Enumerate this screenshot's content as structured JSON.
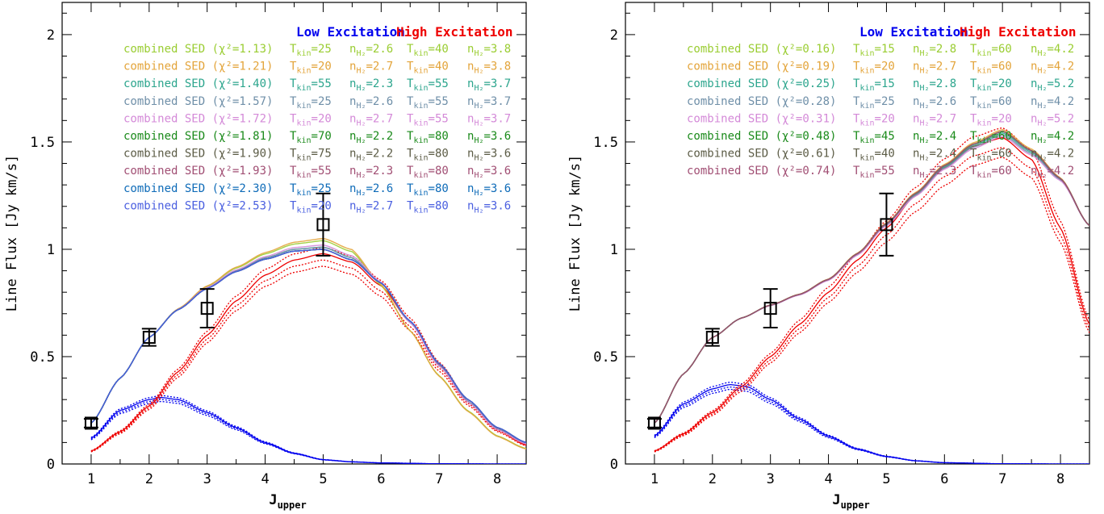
{
  "chart_data": [
    {
      "type": "line",
      "xlabel": "J",
      "xlabel_sub": "upper",
      "ylabel": "Line Flux [Jy km/s]",
      "xlim": [
        0.5,
        8.5
      ],
      "ylim": [
        0,
        2.15
      ],
      "xticks": [
        1,
        2,
        3,
        4,
        5,
        6,
        7,
        8
      ],
      "xtick_labels": [
        "1",
        "2",
        "3",
        "4",
        "5",
        "6",
        "7",
        "8"
      ],
      "yticks": [
        0,
        0.5,
        1,
        1.5,
        2
      ],
      "ytick_labels": [
        "0",
        "0.5",
        "1",
        "1.5",
        "2"
      ],
      "header": {
        "low": "Low Excitation",
        "high": "High Excitation",
        "low_color": "#0000ee",
        "high_color": "#ee0000"
      },
      "observed": {
        "x": [
          1,
          2,
          3,
          5
        ],
        "y": [
          0.19,
          0.59,
          0.725,
          1.115
        ],
        "err": [
          0.02,
          0.04,
          0.09,
          0.145
        ]
      },
      "low_curve": {
        "color": "#0000ee",
        "x": [
          1,
          1.5,
          2,
          2.2,
          2.5,
          3,
          3.5,
          4,
          4.5,
          5,
          5.5,
          6,
          7,
          8,
          8.5
        ],
        "y": [
          0.12,
          0.25,
          0.3,
          0.31,
          0.3,
          0.24,
          0.17,
          0.1,
          0.05,
          0.02,
          0.01,
          0.005,
          0.001,
          0,
          0
        ]
      },
      "high_curve": {
        "color": "#ee0000",
        "x": [
          1,
          1.5,
          2,
          2.5,
          3,
          3.5,
          4,
          4.5,
          5,
          5.5,
          6,
          6.5,
          7,
          7.5,
          8,
          8.5
        ],
        "y": [
          0.06,
          0.15,
          0.27,
          0.43,
          0.6,
          0.76,
          0.88,
          0.95,
          0.98,
          0.94,
          0.83,
          0.66,
          0.46,
          0.29,
          0.16,
          0.09
        ]
      },
      "combined_shape": {
        "x": [
          1,
          1.5,
          2,
          2.5,
          3,
          3.5,
          4,
          4.5,
          5,
          5.5,
          6,
          6.5,
          7,
          7.5,
          8,
          8.5
        ],
        "y": [
          0.19,
          0.4,
          0.59,
          0.72,
          0.82,
          0.9,
          0.96,
          1.0,
          1.01,
          0.96,
          0.85,
          0.67,
          0.47,
          0.3,
          0.17,
          0.1
        ]
      },
      "series": [
        {
          "name": "combined SED",
          "chi2": "1.13",
          "color": "#9acd32",
          "t_low": "25",
          "n_low": "2.6",
          "t_high": "40",
          "n_high": "3.8",
          "peak_scale": 1.03,
          "tail_scale": 0.72
        },
        {
          "name": "combined SED",
          "chi2": "1.21",
          "color": "#e3a43a",
          "t_low": "20",
          "n_low": "2.7",
          "t_high": "40",
          "n_high": "3.8",
          "peak_scale": 1.04,
          "tail_scale": 0.7
        },
        {
          "name": "combined SED",
          "chi2": "1.40",
          "color": "#2ca58d",
          "t_low": "55",
          "n_low": "2.3",
          "t_high": "55",
          "n_high": "3.7",
          "peak_scale": 1.0,
          "tail_scale": 0.95
        },
        {
          "name": "combined SED",
          "chi2": "1.57",
          "color": "#6f8fa8",
          "t_low": "25",
          "n_low": "2.6",
          "t_high": "55",
          "n_high": "3.7",
          "peak_scale": 1.0,
          "tail_scale": 0.95
        },
        {
          "name": "combined SED",
          "chi2": "1.72",
          "color": "#d48ad8",
          "t_low": "20",
          "n_low": "2.7",
          "t_high": "55",
          "n_high": "3.7",
          "peak_scale": 1.01,
          "tail_scale": 0.93
        },
        {
          "name": "combined SED",
          "chi2": "1.81",
          "color": "#1a8a1a",
          "t_low": "70",
          "n_low": "2.2",
          "t_high": "80",
          "n_high": "3.6",
          "peak_scale": 0.99,
          "tail_scale": 1.0
        },
        {
          "name": "combined SED",
          "chi2": "1.90",
          "color": "#5c5c46",
          "t_low": "75",
          "n_low": "2.2",
          "t_high": "80",
          "n_high": "3.6",
          "peak_scale": 0.99,
          "tail_scale": 1.0
        },
        {
          "name": "combined SED",
          "chi2": "1.93",
          "color": "#a14f74",
          "t_low": "55",
          "n_low": "2.3",
          "t_high": "80",
          "n_high": "3.6",
          "peak_scale": 0.99,
          "tail_scale": 1.0
        },
        {
          "name": "combined SED",
          "chi2": "2.30",
          "color": "#0e6bb8",
          "t_low": "25",
          "n_low": "2.6",
          "t_high": "80",
          "n_high": "3.6",
          "peak_scale": 0.99,
          "tail_scale": 1.0
        },
        {
          "name": "combined SED",
          "chi2": "2.53",
          "color": "#4a5fe0",
          "t_low": "20",
          "n_low": "2.7",
          "t_high": "80",
          "n_high": "3.6",
          "peak_scale": 0.99,
          "tail_scale": 1.0
        }
      ]
    },
    {
      "type": "line",
      "xlabel": "J",
      "xlabel_sub": "upper",
      "ylabel": "Line Flux [Jy km/s]",
      "xlim": [
        0.5,
        8.5
      ],
      "ylim": [
        0,
        2.15
      ],
      "xticks": [
        1,
        2,
        3,
        4,
        5,
        6,
        7,
        8
      ],
      "xtick_labels": [
        "1",
        "2",
        "3",
        "4",
        "5",
        "6",
        "7",
        "8"
      ],
      "yticks": [
        0,
        0.5,
        1,
        1.5,
        2
      ],
      "ytick_labels": [
        "0",
        "0.5",
        "1",
        "1.5",
        "2"
      ],
      "header": {
        "low": "Low Excitation",
        "high": "High Excitation",
        "low_color": "#0000ee",
        "high_color": "#ee0000"
      },
      "observed": {
        "x": [
          1,
          2,
          3,
          5
        ],
        "y": [
          0.19,
          0.59,
          0.725,
          1.115
        ],
        "err": [
          0.02,
          0.04,
          0.09,
          0.145
        ]
      },
      "low_curve": {
        "color": "#0000ee",
        "x": [
          1,
          1.5,
          2,
          2.3,
          2.6,
          3,
          3.5,
          4,
          4.5,
          5,
          5.5,
          6,
          7,
          8,
          8.5
        ],
        "y": [
          0.13,
          0.28,
          0.35,
          0.37,
          0.36,
          0.3,
          0.21,
          0.13,
          0.07,
          0.035,
          0.015,
          0.006,
          0.001,
          0,
          0
        ]
      },
      "high_curve": {
        "color": "#ee0000",
        "x": [
          1,
          1.5,
          2,
          2.5,
          3,
          3.5,
          4,
          4.5,
          5,
          5.5,
          6,
          6.5,
          7,
          7.5,
          8,
          8.5
        ],
        "y": [
          0.06,
          0.14,
          0.24,
          0.36,
          0.5,
          0.65,
          0.8,
          0.95,
          1.1,
          1.25,
          1.38,
          1.48,
          1.52,
          1.42,
          1.1,
          0.65
        ]
      },
      "combined_shape": {
        "x": [
          1,
          1.5,
          2,
          2.5,
          3,
          3.5,
          4,
          4.5,
          5,
          5.5,
          6,
          6.5,
          7,
          7.5,
          8,
          8.5
        ],
        "y": [
          0.19,
          0.42,
          0.59,
          0.68,
          0.74,
          0.79,
          0.86,
          0.98,
          1.12,
          1.26,
          1.39,
          1.49,
          1.55,
          1.46,
          1.33,
          1.11
        ]
      },
      "series": [
        {
          "name": "combined SED",
          "chi2": "0.16",
          "color": "#9acd32",
          "t_low": "15",
          "n_low": "2.8",
          "t_high": "60",
          "n_high": "4.2",
          "peak_scale": 1.0,
          "tail_scale": 1.0
        },
        {
          "name": "combined SED",
          "chi2": "0.19",
          "color": "#e3a43a",
          "t_low": "20",
          "n_low": "2.7",
          "t_high": "60",
          "n_high": "4.2",
          "peak_scale": 1.005,
          "tail_scale": 1.0
        },
        {
          "name": "combined SED",
          "chi2": "0.25",
          "color": "#2ca58d",
          "t_low": "15",
          "n_low": "2.8",
          "t_high": "20",
          "n_high": "5.2",
          "peak_scale": 0.995,
          "tail_scale": 1.0
        },
        {
          "name": "combined SED",
          "chi2": "0.28",
          "color": "#6f8fa8",
          "t_low": "25",
          "n_low": "2.6",
          "t_high": "60",
          "n_high": "4.2",
          "peak_scale": 0.99,
          "tail_scale": 1.0
        },
        {
          "name": "combined SED",
          "chi2": "0.31",
          "color": "#d48ad8",
          "t_low": "20",
          "n_low": "2.7",
          "t_high": "20",
          "n_high": "5.2",
          "peak_scale": 0.985,
          "tail_scale": 1.0
        },
        {
          "name": "combined SED",
          "chi2": "0.48",
          "color": "#1a8a1a",
          "t_low": "45",
          "n_low": "2.4",
          "t_high": "60",
          "n_high": "4.2",
          "peak_scale": 1.0,
          "tail_scale": 1.0
        },
        {
          "name": "combined SED",
          "chi2": "0.61",
          "color": "#5c5c46",
          "t_low": "40",
          "n_low": "2.4",
          "t_high": "60",
          "n_high": "4.2",
          "peak_scale": 1.0,
          "tail_scale": 1.0
        },
        {
          "name": "combined SED",
          "chi2": "0.74",
          "color": "#a14f74",
          "t_low": "55",
          "n_low": "2.3",
          "t_high": "60",
          "n_high": "4.2",
          "peak_scale": 1.0,
          "tail_scale": 1.0
        }
      ]
    }
  ]
}
